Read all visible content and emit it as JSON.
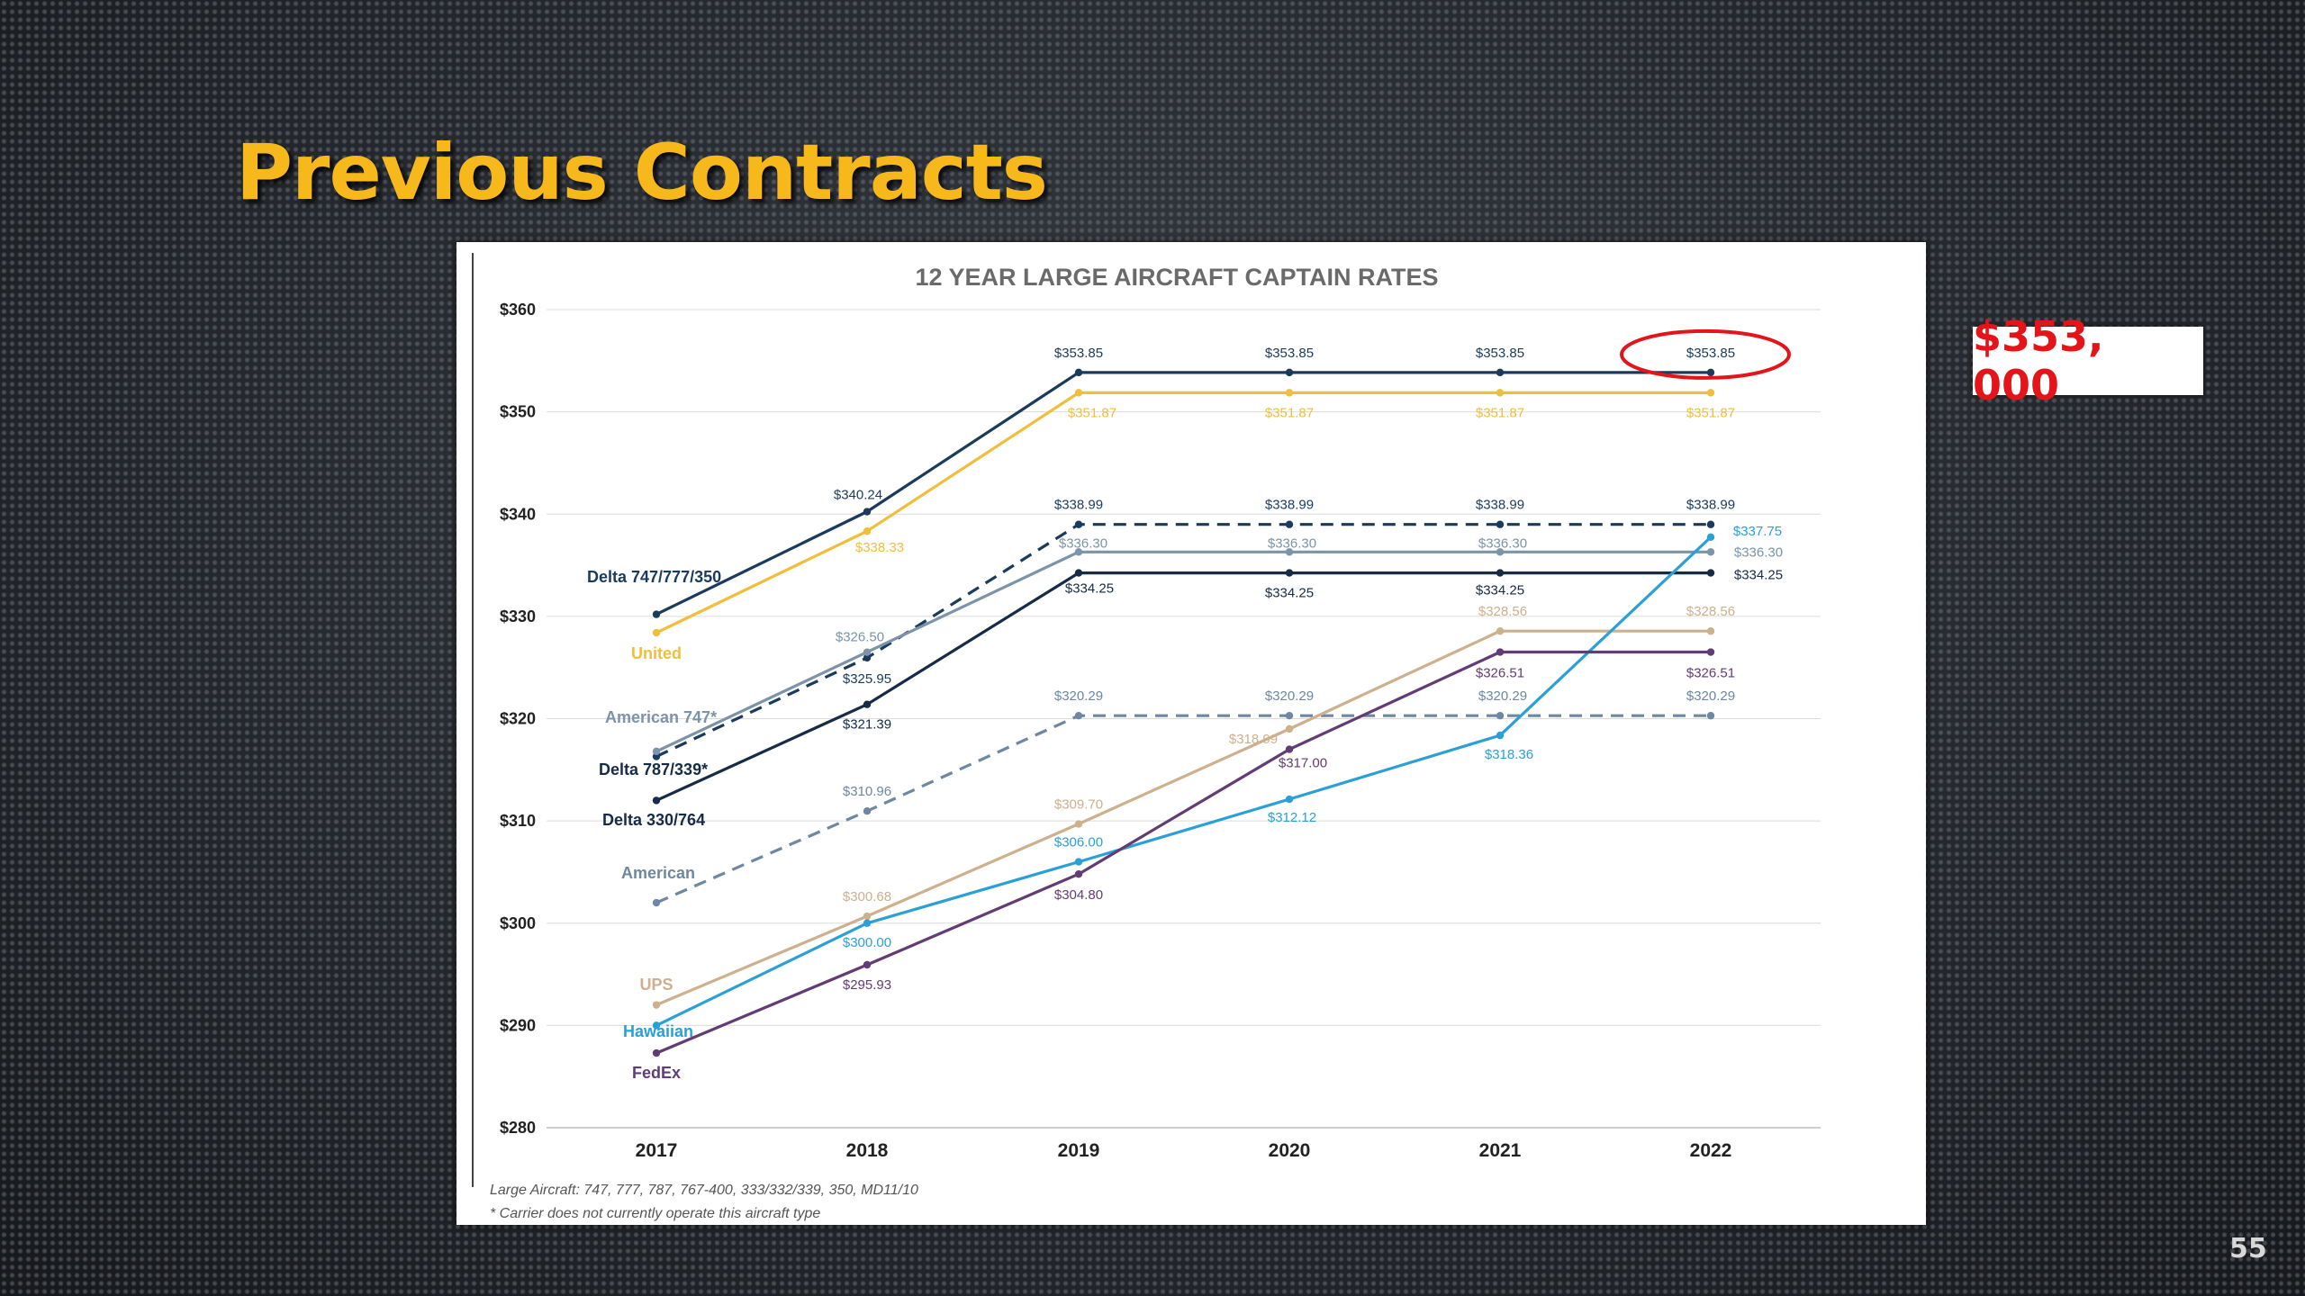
{
  "slide": {
    "title": "Previous Contracts",
    "callout": "$353, 000",
    "page_number": "55"
  },
  "chart_data": {
    "type": "line",
    "title": "12 YEAR LARGE AIRCRAFT CAPTAIN RATES",
    "xlabel": "",
    "ylabel": "",
    "x": [
      "2017",
      "2018",
      "2019",
      "2020",
      "2021",
      "2022"
    ],
    "ylim": [
      280,
      360
    ],
    "yticks": [
      280,
      290,
      300,
      310,
      320,
      330,
      340,
      350,
      360
    ],
    "ytick_labels": [
      "$280",
      "$290",
      "$300",
      "$310",
      "$320",
      "$330",
      "$340",
      "$350",
      "$360"
    ],
    "grid": true,
    "highlight": {
      "series": "Delta 747/777/350",
      "year": "2022",
      "color": "#e4141b"
    },
    "series": [
      {
        "name": "Delta 747/777/350",
        "color": "#1b3a5c",
        "dash": false,
        "values": [
          330.2,
          340.24,
          353.85,
          353.85,
          353.85,
          353.85
        ],
        "labels": [
          "",
          "$340.24",
          "$353.85",
          "$353.85",
          "$353.85",
          "$353.85"
        ]
      },
      {
        "name": "United",
        "color": "#f0be3a",
        "dash": false,
        "values": [
          328.4,
          338.33,
          351.87,
          351.87,
          351.87,
          351.87
        ],
        "labels": [
          "",
          "$338.33",
          "$351.87",
          "$351.87",
          "$351.87",
          "$351.87"
        ]
      },
      {
        "name": "Delta 787/339*",
        "color": "#1b3a5c",
        "dash": true,
        "values": [
          316.3,
          325.95,
          338.99,
          338.99,
          338.99,
          338.99
        ],
        "labels": [
          "",
          "$325.95",
          "$338.99",
          "$338.99",
          "$338.99",
          "$338.99"
        ]
      },
      {
        "name": "American 747*",
        "color": "#7c93a8",
        "dash": false,
        "values": [
          316.8,
          326.5,
          336.3,
          336.3,
          336.3,
          336.3
        ],
        "labels": [
          "",
          "$326.50",
          "$336.30",
          "$336.30",
          "$336.30",
          "$336.30"
        ]
      },
      {
        "name": "Delta 330/764",
        "color": "#172a46",
        "dash": false,
        "values": [
          312.0,
          321.39,
          334.25,
          334.25,
          334.25,
          334.25
        ],
        "labels": [
          "",
          "$321.39",
          "$334.25",
          "$334.25",
          "$334.25",
          "$334.25"
        ]
      },
      {
        "name": "American",
        "color": "#6f87a0",
        "dash": true,
        "values": [
          302.0,
          310.96,
          320.29,
          320.29,
          320.29,
          320.29
        ],
        "labels": [
          "",
          "$310.96",
          "$320.29",
          "$320.29",
          "$320.29",
          "$320.29"
        ]
      },
      {
        "name": "UPS",
        "color": "#cdb08e",
        "dash": false,
        "values": [
          292.0,
          300.68,
          309.7,
          318.99,
          328.56,
          328.56
        ],
        "labels": [
          "",
          "$300.68",
          "$309.70",
          "$318.99",
          "$328.56",
          "$328.56"
        ]
      },
      {
        "name": "Hawaiian",
        "color": "#2aa0d6",
        "dash": false,
        "values": [
          290.0,
          300.0,
          306.0,
          312.12,
          318.36,
          337.75
        ],
        "labels": [
          "",
          "$300.00",
          "$306.00",
          "$312.12",
          "$318.36",
          "$337.75"
        ]
      },
      {
        "name": "FedEx",
        "color": "#623c74",
        "dash": false,
        "values": [
          287.3,
          295.93,
          304.8,
          317.0,
          326.51,
          326.51
        ],
        "labels": [
          "",
          "$295.93",
          "$304.80",
          "$317.00",
          "$326.51",
          "$326.51"
        ]
      }
    ],
    "footnotes": [
      "Large Aircraft: 747, 777, 787, 767-400, 333/332/339, 350, MD11/10",
      "* Carrier does not currently operate this aircraft type"
    ]
  }
}
